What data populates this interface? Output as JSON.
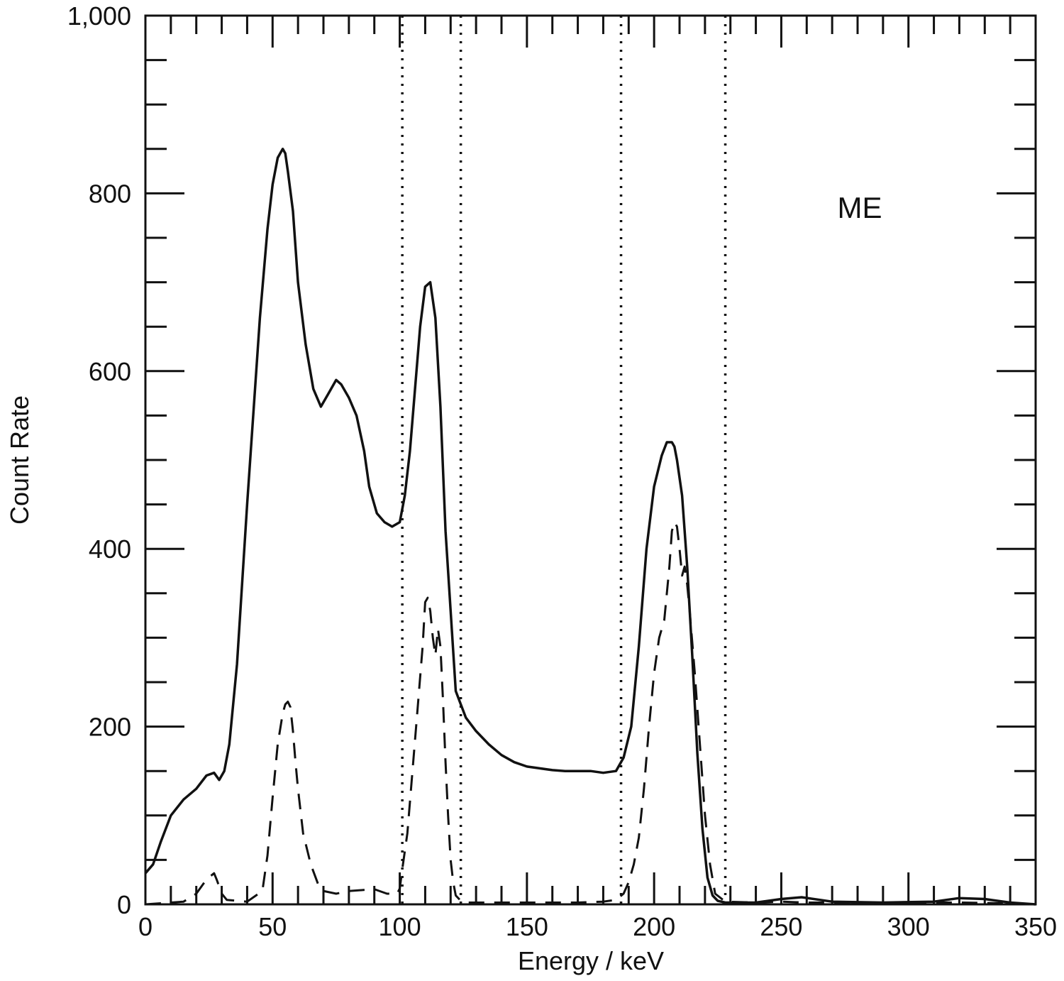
{
  "chart_data": {
    "type": "line",
    "title": "",
    "xlabel": "Energy / keV",
    "ylabel": "Count Rate",
    "xlim": [
      0,
      350
    ],
    "ylim": [
      0,
      1000
    ],
    "x_ticks": [
      0,
      50,
      100,
      150,
      200,
      250,
      300,
      350
    ],
    "x_tick_labels": [
      "0",
      "50",
      "100",
      "150",
      "200",
      "250",
      "300",
      "350"
    ],
    "y_ticks": [
      0,
      200,
      400,
      600,
      800,
      1000
    ],
    "y_tick_labels": [
      "0",
      "200",
      "400",
      "600",
      "800",
      "1,000"
    ],
    "x_minor_step": 10,
    "y_minor_step": 50,
    "grid": false,
    "annotation": "ME",
    "line_color": "#111111",
    "series": [
      {
        "style": "solid",
        "x": [
          0,
          3,
          6,
          10,
          15,
          20,
          24,
          27,
          29,
          31,
          33,
          36,
          40,
          45,
          48,
          50,
          52,
          54,
          55,
          56,
          58,
          60,
          63,
          66,
          69,
          72,
          75,
          77,
          80,
          83,
          86,
          88,
          91,
          94,
          97,
          100,
          102,
          104,
          106,
          108,
          110,
          112,
          114,
          116,
          118,
          120,
          122,
          124,
          126,
          130,
          135,
          140,
          145,
          150,
          155,
          160,
          165,
          170,
          175,
          180,
          185,
          188,
          191,
          194,
          197,
          200,
          203,
          205,
          207,
          208,
          209,
          211,
          213,
          215,
          217,
          219,
          221,
          223,
          225,
          228,
          232,
          240,
          250,
          258,
          270,
          290,
          310,
          320,
          330,
          340,
          350
        ],
        "y": [
          35,
          45,
          70,
          100,
          118,
          130,
          145,
          148,
          140,
          150,
          180,
          270,
          450,
          660,
          760,
          810,
          840,
          850,
          845,
          825,
          780,
          700,
          630,
          580,
          560,
          575,
          590,
          585,
          570,
          550,
          510,
          470,
          440,
          430,
          425,
          430,
          460,
          510,
          580,
          650,
          695,
          700,
          660,
          560,
          420,
          330,
          240,
          225,
          210,
          195,
          180,
          168,
          160,
          155,
          153,
          151,
          150,
          150,
          150,
          148,
          150,
          165,
          200,
          290,
          400,
          470,
          505,
          520,
          520,
          515,
          500,
          460,
          380,
          280,
          170,
          85,
          30,
          10,
          4,
          2,
          2,
          2,
          6,
          8,
          3,
          2,
          3,
          7,
          6,
          2,
          0
        ]
      },
      {
        "style": "dashed",
        "x": [
          0,
          15,
          20,
          24,
          27,
          28,
          30,
          32,
          40,
          46,
          48,
          50,
          52,
          54,
          55,
          56,
          57,
          58,
          59,
          60,
          62,
          65,
          68,
          70,
          75,
          80,
          90,
          95,
          99,
          100,
          101,
          103,
          105,
          107,
          109,
          110,
          111,
          112,
          113,
          114,
          115,
          116,
          117,
          118,
          119,
          120,
          121,
          122,
          124,
          126,
          130,
          140,
          150,
          170,
          180,
          185,
          188,
          190,
          192,
          194,
          196,
          198,
          200,
          202,
          204,
          206,
          207,
          208,
          209,
          210,
          211,
          212,
          213,
          214,
          216,
          218,
          220,
          222,
          224,
          228,
          240,
          250,
          260,
          280,
          300,
          320,
          340,
          350
        ],
        "y": [
          0,
          3,
          12,
          28,
          35,
          28,
          12,
          5,
          3,
          15,
          55,
          120,
          180,
          215,
          225,
          228,
          222,
          195,
          160,
          130,
          80,
          45,
          22,
          15,
          12,
          15,
          17,
          12,
          12,
          18,
          40,
          80,
          150,
          220,
          290,
          340,
          345,
          330,
          300,
          280,
          310,
          290,
          230,
          160,
          100,
          50,
          25,
          10,
          4,
          2,
          2,
          2,
          2,
          2,
          3,
          5,
          12,
          25,
          45,
          75,
          130,
          200,
          260,
          300,
          320,
          380,
          420,
          430,
          425,
          400,
          370,
          380,
          360,
          330,
          260,
          180,
          100,
          45,
          12,
          3,
          2,
          3,
          2,
          2,
          2,
          2,
          1,
          0
        ]
      }
    ],
    "reference_lines_x": [
      101,
      124,
      187,
      228
    ],
    "reference_line_style": "dotted"
  }
}
